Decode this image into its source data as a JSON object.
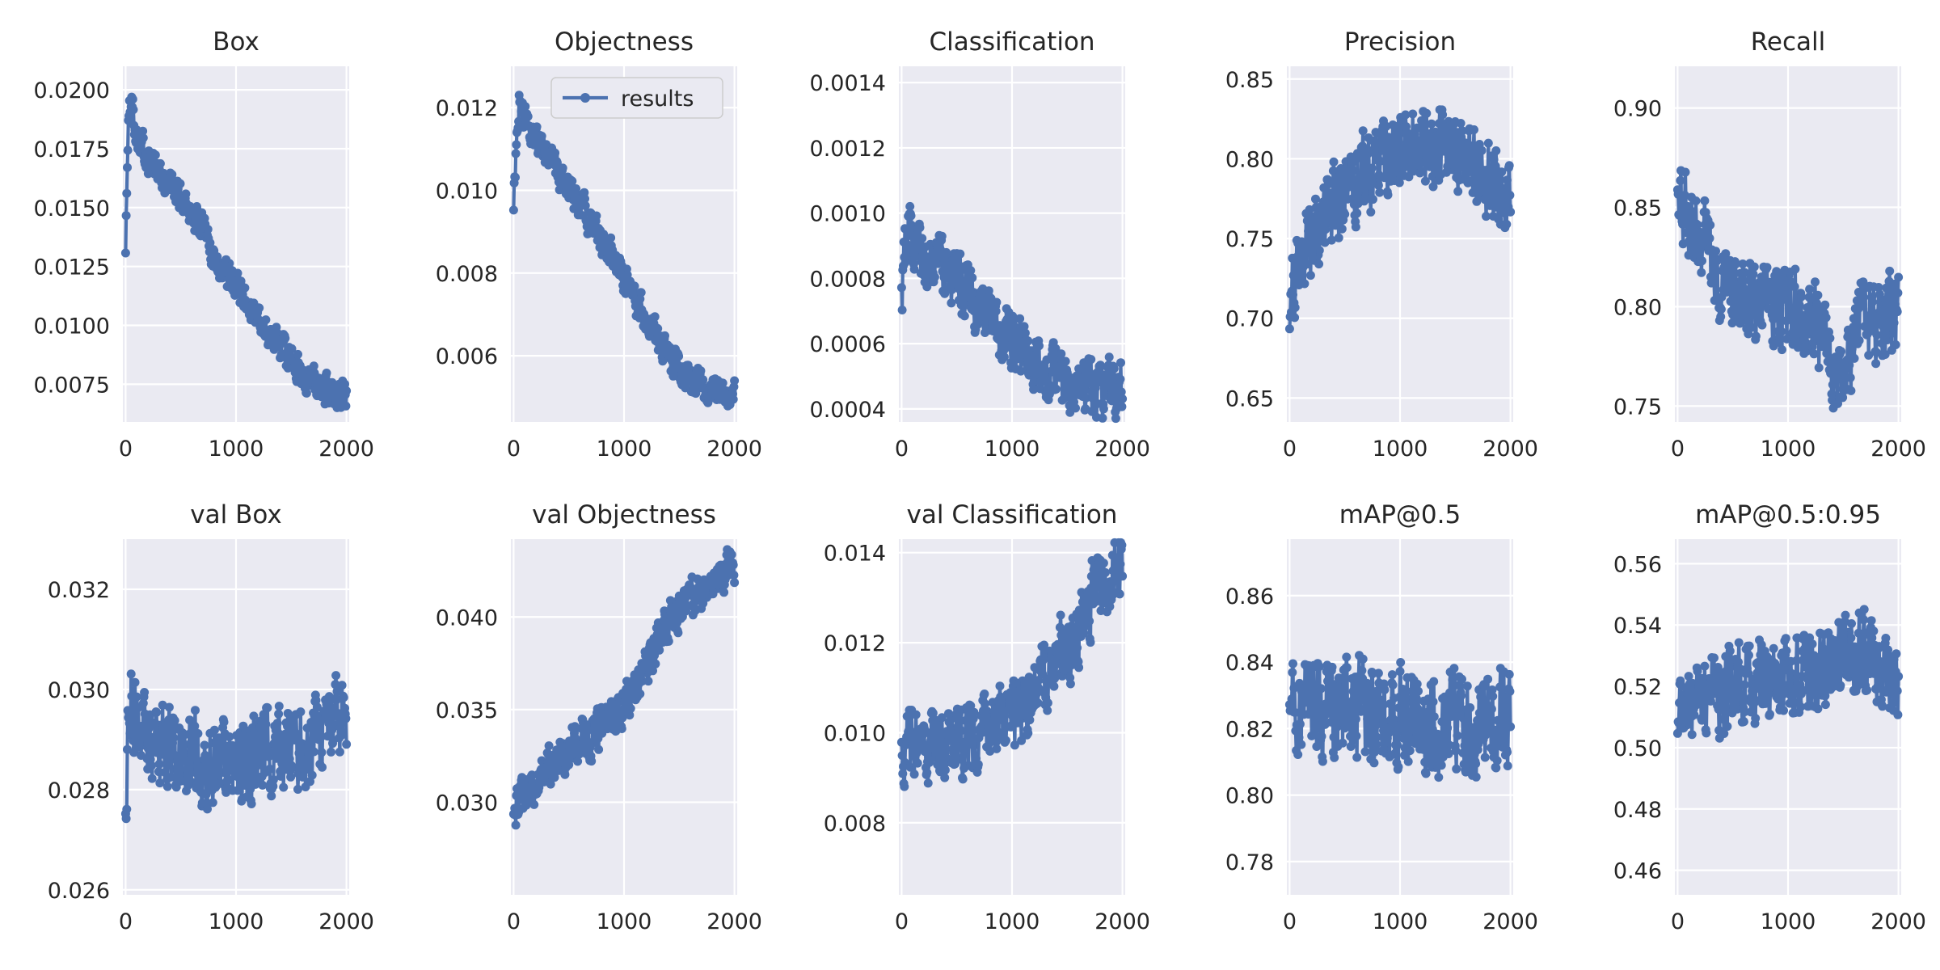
{
  "series_color": "#4c72b0",
  "legend": {
    "label": "results",
    "subplot": 1,
    "placement": "upper-right"
  },
  "chart_data": [
    {
      "type": "line",
      "title": "Box",
      "xlabel": "",
      "ylabel": "",
      "xlim": [
        -25,
        2025
      ],
      "ylim": [
        0.0059,
        0.021
      ],
      "xticks": [
        0,
        1000,
        2000
      ],
      "xtick_labels": [
        "0",
        "1000",
        "2000"
      ],
      "yticks": [
        0.0075,
        0.01,
        0.0125,
        0.015,
        0.0175,
        0.02
      ],
      "ytick_labels": [
        "0.0075",
        "0.0100",
        "0.0125",
        "0.0150",
        "0.0175",
        "0.0200"
      ],
      "series": [
        {
          "x": [
            0,
            25,
            50,
            100,
            200,
            300,
            400,
            500,
            600,
            700,
            800,
            900,
            1000,
            1100,
            1200,
            1300,
            1400,
            1500,
            1600,
            1700,
            1800,
            1900,
            2000
          ],
          "y": [
            0.0135,
            0.0185,
            0.0196,
            0.0182,
            0.0172,
            0.0165,
            0.016,
            0.0154,
            0.0148,
            0.014,
            0.013,
            0.0122,
            0.0117,
            0.011,
            0.0103,
            0.0097,
            0.0091,
            0.0085,
            0.008,
            0.0077,
            0.0074,
            0.0072,
            0.007
          ],
          "noise": 0.0009
        }
      ]
    },
    {
      "type": "line",
      "title": "Objectness",
      "xlabel": "",
      "ylabel": "",
      "xlim": [
        -25,
        2025
      ],
      "ylim": [
        0.0044,
        0.013
      ],
      "xticks": [
        0,
        1000,
        2000
      ],
      "xtick_labels": [
        "0",
        "1000",
        "2000"
      ],
      "yticks": [
        0.006,
        0.008,
        0.01,
        0.012
      ],
      "ytick_labels": [
        "0.006",
        "0.008",
        "0.010",
        "0.012"
      ],
      "series": [
        {
          "name": "results",
          "x": [
            0,
            25,
            50,
            100,
            200,
            300,
            400,
            500,
            600,
            700,
            800,
            900,
            1000,
            1100,
            1200,
            1300,
            1400,
            1500,
            1600,
            1700,
            1800,
            1900,
            2000
          ],
          "y": [
            0.0098,
            0.0112,
            0.0121,
            0.0118,
            0.0113,
            0.0108,
            0.0104,
            0.0101,
            0.0097,
            0.0092,
            0.0088,
            0.0084,
            0.0079,
            0.0074,
            0.0069,
            0.0064,
            0.006,
            0.0057,
            0.0055,
            0.0053,
            0.0052,
            0.0051,
            0.005
          ],
          "noise": 0.0005
        }
      ]
    },
    {
      "type": "line",
      "title": "Classification",
      "xlabel": "",
      "ylabel": "",
      "xlim": [
        -25,
        2025
      ],
      "ylim": [
        0.00036,
        0.00145
      ],
      "xticks": [
        0,
        1000,
        2000
      ],
      "xtick_labels": [
        "0",
        "1000",
        "2000"
      ],
      "yticks": [
        0.0004,
        0.0006,
        0.0008,
        0.001,
        0.0012,
        0.0014
      ],
      "ytick_labels": [
        "0.0004",
        "0.0006",
        "0.0008",
        "0.0010",
        "0.0012",
        "0.0014"
      ],
      "series": [
        {
          "x": [
            0,
            25,
            50,
            100,
            200,
            300,
            400,
            500,
            600,
            700,
            800,
            900,
            1000,
            1100,
            1200,
            1300,
            1400,
            1500,
            1600,
            1700,
            1800,
            1900,
            2000
          ],
          "y": [
            0.0007,
            0.00085,
            0.00095,
            0.00092,
            0.00088,
            0.00085,
            0.00082,
            0.0008,
            0.00077,
            0.00072,
            0.00068,
            0.00064,
            0.00061,
            0.00058,
            0.00056,
            0.00053,
            0.00051,
            0.00049,
            0.00048,
            0.00047,
            0.00046,
            0.00046,
            0.00045
          ],
          "noise": 0.00012
        }
      ]
    },
    {
      "type": "line",
      "title": "Precision",
      "xlabel": "",
      "ylabel": "",
      "xlim": [
        -25,
        2025
      ],
      "ylim": [
        0.635,
        0.858
      ],
      "xticks": [
        0,
        1000,
        2000
      ],
      "xtick_labels": [
        "0",
        "1000",
        "2000"
      ],
      "yticks": [
        0.65,
        0.7,
        0.75,
        0.8,
        0.85
      ],
      "ytick_labels": [
        "0.65",
        "0.70",
        "0.75",
        "0.80",
        "0.85"
      ],
      "series": [
        {
          "x": [
            0,
            25,
            50,
            100,
            200,
            300,
            400,
            500,
            600,
            700,
            800,
            900,
            1000,
            1100,
            1200,
            1300,
            1400,
            1500,
            1600,
            1700,
            1800,
            1900,
            2000
          ],
          "y": [
            0.7,
            0.715,
            0.725,
            0.735,
            0.75,
            0.76,
            0.772,
            0.78,
            0.788,
            0.795,
            0.8,
            0.803,
            0.805,
            0.807,
            0.808,
            0.809,
            0.808,
            0.806,
            0.803,
            0.798,
            0.79,
            0.78,
            0.772
          ],
          "noise": 0.035
        }
      ]
    },
    {
      "type": "line",
      "title": "Recall",
      "xlabel": "",
      "ylabel": "",
      "xlim": [
        -25,
        2025
      ],
      "ylim": [
        0.742,
        0.921
      ],
      "xticks": [
        0,
        1000,
        2000
      ],
      "xtick_labels": [
        "0",
        "1000",
        "2000"
      ],
      "yticks": [
        0.75,
        0.8,
        0.85,
        0.9
      ],
      "ytick_labels": [
        "0.75",
        "0.80",
        "0.85",
        "0.90"
      ],
      "series": [
        {
          "x": [
            0,
            25,
            50,
            100,
            200,
            300,
            400,
            500,
            600,
            700,
            800,
            900,
            1000,
            1100,
            1200,
            1300,
            1400,
            1450,
            1500,
            1550,
            1600,
            1700,
            1800,
            1900,
            2000
          ],
          "y": [
            0.85,
            0.855,
            0.85,
            0.845,
            0.835,
            0.825,
            0.815,
            0.808,
            0.803,
            0.8,
            0.799,
            0.798,
            0.798,
            0.796,
            0.794,
            0.785,
            0.77,
            0.762,
            0.76,
            0.772,
            0.788,
            0.792,
            0.794,
            0.795,
            0.796
          ],
          "noise": 0.028
        }
      ]
    },
    {
      "type": "line",
      "title": "val Box",
      "xlabel": "",
      "ylabel": "",
      "xlim": [
        -25,
        2025
      ],
      "ylim": [
        0.0259,
        0.033
      ],
      "xticks": [
        0,
        1000,
        2000
      ],
      "xtick_labels": [
        "0",
        "1000",
        "2000"
      ],
      "yticks": [
        0.026,
        0.028,
        0.03,
        0.032
      ],
      "ytick_labels": [
        "0.026",
        "0.028",
        "0.030",
        "0.032"
      ],
      "series": [
        {
          "x": [
            0,
            25,
            50,
            100,
            200,
            300,
            400,
            500,
            600,
            700,
            800,
            900,
            1000,
            1100,
            1200,
            1300,
            1400,
            1500,
            1600,
            1700,
            1800,
            1900,
            2000
          ],
          "y": [
            0.027,
            0.0292,
            0.0298,
            0.0295,
            0.0292,
            0.029,
            0.0289,
            0.0288,
            0.0287,
            0.0286,
            0.0285,
            0.0285,
            0.0284,
            0.0286,
            0.0287,
            0.0288,
            0.0288,
            0.0288,
            0.0288,
            0.0289,
            0.0292,
            0.0296,
            0.0297
          ],
          "noise": 0.0011
        }
      ]
    },
    {
      "type": "line",
      "title": "val Objectness",
      "xlabel": "",
      "ylabel": "",
      "xlim": [
        -25,
        2025
      ],
      "ylim": [
        0.025,
        0.0442
      ],
      "xticks": [
        0,
        1000,
        2000
      ],
      "xtick_labels": [
        "0",
        "1000",
        "2000"
      ],
      "yticks": [
        0.03,
        0.035,
        0.04
      ],
      "ytick_labels": [
        "0.030",
        "0.035",
        "0.040"
      ],
      "series": [
        {
          "x": [
            0,
            25,
            50,
            100,
            200,
            300,
            400,
            500,
            600,
            700,
            800,
            900,
            1000,
            1100,
            1200,
            1300,
            1400,
            1500,
            1600,
            1700,
            1800,
            1900,
            2000
          ],
          "y": [
            0.0295,
            0.03,
            0.0302,
            0.0305,
            0.031,
            0.0318,
            0.0322,
            0.0328,
            0.0332,
            0.0335,
            0.034,
            0.0346,
            0.0352,
            0.036,
            0.0372,
            0.0385,
            0.0397,
            0.0405,
            0.0412,
            0.0412,
            0.0416,
            0.0423,
            0.043
          ],
          "noise": 0.0015
        }
      ]
    },
    {
      "type": "line",
      "title": "val Classification",
      "xlabel": "",
      "ylabel": "",
      "xlim": [
        -25,
        2025
      ],
      "ylim": [
        0.0064,
        0.0143
      ],
      "xticks": [
        0,
        1000,
        2000
      ],
      "xtick_labels": [
        "0",
        "1000",
        "2000"
      ],
      "yticks": [
        0.008,
        0.01,
        0.012,
        0.014
      ],
      "ytick_labels": [
        "0.008",
        "0.010",
        "0.012",
        "0.014"
      ],
      "series": [
        {
          "x": [
            0,
            25,
            50,
            100,
            200,
            300,
            400,
            500,
            600,
            700,
            800,
            900,
            1000,
            1100,
            1200,
            1300,
            1400,
            1500,
            1600,
            1700,
            1800,
            1900,
            2000
          ],
          "y": [
            0.0092,
            0.0096,
            0.0097,
            0.0097,
            0.0097,
            0.0097,
            0.0098,
            0.0098,
            0.0099,
            0.01,
            0.0101,
            0.0102,
            0.0103,
            0.0106,
            0.011,
            0.0114,
            0.0117,
            0.0118,
            0.0124,
            0.0129,
            0.0131,
            0.0135,
            0.0139
          ],
          "noise": 0.0011
        }
      ]
    },
    {
      "type": "line",
      "title": "mAP@0.5",
      "xlabel": "",
      "ylabel": "",
      "xlim": [
        -25,
        2025
      ],
      "ylim": [
        0.77,
        0.877
      ],
      "xticks": [
        0,
        1000,
        2000
      ],
      "xtick_labels": [
        "0",
        "1000",
        "2000"
      ],
      "yticks": [
        0.78,
        0.8,
        0.82,
        0.84,
        0.86
      ],
      "ytick_labels": [
        "0.78",
        "0.80",
        "0.82",
        "0.84",
        "0.86"
      ],
      "series": [
        {
          "x": [
            0,
            25,
            50,
            100,
            200,
            300,
            400,
            500,
            600,
            700,
            800,
            900,
            1000,
            1100,
            1200,
            1300,
            1400,
            1500,
            1600,
            1700,
            1800,
            1900,
            2000
          ],
          "y": [
            0.818,
            0.822,
            0.824,
            0.825,
            0.825,
            0.826,
            0.826,
            0.826,
            0.826,
            0.825,
            0.824,
            0.823,
            0.822,
            0.821,
            0.82,
            0.82,
            0.82,
            0.821,
            0.822,
            0.823,
            0.822,
            0.822,
            0.821
          ],
          "noise": 0.02
        }
      ]
    },
    {
      "type": "line",
      "title": "mAP@0.5:0.95",
      "xlabel": "",
      "ylabel": "",
      "xlim": [
        -25,
        2025
      ],
      "ylim": [
        0.452,
        0.568
      ],
      "xticks": [
        0,
        1000,
        2000
      ],
      "xtick_labels": [
        "0",
        "1000",
        "2000"
      ],
      "yticks": [
        0.46,
        0.48,
        0.5,
        0.52,
        0.54,
        0.56
      ],
      "ytick_labels": [
        "0.46",
        "0.48",
        "0.50",
        "0.52",
        "0.54",
        "0.56"
      ],
      "series": [
        {
          "x": [
            0,
            25,
            50,
            100,
            200,
            300,
            400,
            500,
            600,
            700,
            800,
            900,
            1000,
            1100,
            1200,
            1300,
            1400,
            1500,
            1600,
            1700,
            1800,
            1900,
            2000
          ],
          "y": [
            0.505,
            0.512,
            0.515,
            0.516,
            0.517,
            0.518,
            0.519,
            0.52,
            0.521,
            0.522,
            0.523,
            0.524,
            0.524,
            0.525,
            0.526,
            0.527,
            0.528,
            0.529,
            0.53,
            0.53,
            0.529,
            0.524,
            0.521
          ],
          "noise": 0.018
        }
      ]
    }
  ]
}
